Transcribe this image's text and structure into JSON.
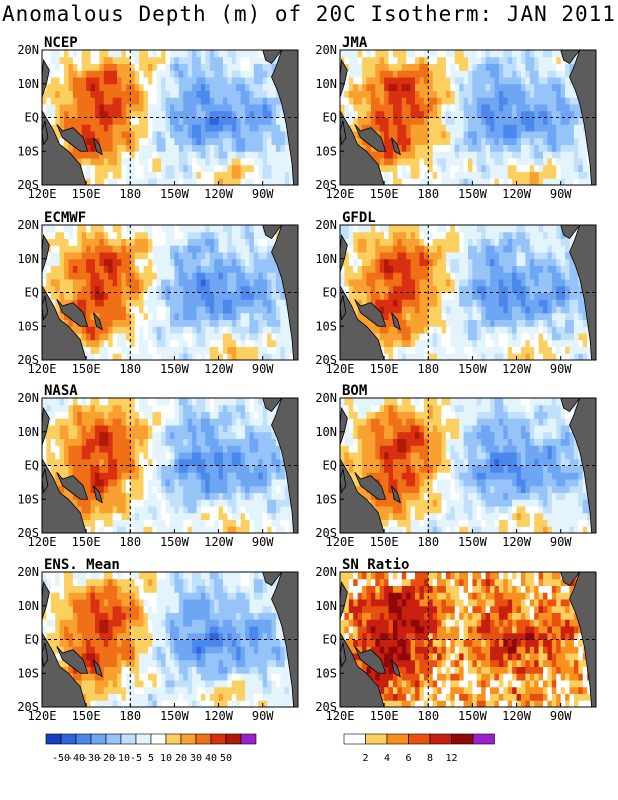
{
  "title": "Anomalous Depth (m) of 20C Isotherm: JAN 2011",
  "axes": {
    "lon_ticks": [
      "120E",
      "150E",
      "180",
      "150W",
      "120W",
      "90W"
    ],
    "lat_ticks": [
      "20N",
      "10N",
      "EQ",
      "10S",
      "20S"
    ],
    "lon_values": [
      120,
      150,
      180,
      210,
      240,
      270
    ],
    "lat_values": [
      20,
      10,
      0,
      -10,
      -20
    ],
    "xlim": [
      120,
      294
    ],
    "ylim": [
      -20,
      20
    ],
    "dashed_reference_lines": {
      "lon": 180,
      "lat": 0
    }
  },
  "colors": {
    "land": "#5c5c5c",
    "anomaly_scale": [
      "#1540c0",
      "#2e64dc",
      "#4a88ec",
      "#6ea6f4",
      "#96c4f8",
      "#c0e0fb",
      "#e4f4fd",
      "#ffffff",
      "#fdf2a8",
      "#fcd060",
      "#f8a030",
      "#f07018",
      "#d83010",
      "#b01808",
      "#800000",
      "#9a20d0"
    ],
    "sn_scale": [
      "#ffffff",
      "#fcd060",
      "#f89020",
      "#e85010",
      "#c82010",
      "#900808",
      "#9a20d0"
    ]
  },
  "chart_data": [
    {
      "type": "heatmap",
      "title": "NCEP",
      "variable": "20C isotherm depth anomaly (m)"
    },
    {
      "type": "heatmap",
      "title": "JMA",
      "variable": "20C isotherm depth anomaly (m)"
    },
    {
      "type": "heatmap",
      "title": "ECMWF",
      "variable": "20C isotherm depth anomaly (m)"
    },
    {
      "type": "heatmap",
      "title": "GFDL",
      "variable": "20C isotherm depth anomaly (m)"
    },
    {
      "type": "heatmap",
      "title": "NASA",
      "variable": "20C isotherm depth anomaly (m)"
    },
    {
      "type": "heatmap",
      "title": "BOM",
      "variable": "20C isotherm depth anomaly (m)"
    },
    {
      "type": "heatmap",
      "title": "ENS. Mean",
      "variable": "20C isotherm depth anomaly (m)"
    },
    {
      "type": "heatmap",
      "title": "SN Ratio",
      "variable": "signal-to-noise ratio"
    }
  ],
  "legends": {
    "anomaly_labels": [
      "-50",
      "-40",
      "-30",
      "-20",
      "-10",
      "-5",
      "5",
      "10",
      "20",
      "30",
      "40",
      "50"
    ],
    "sn_labels": [
      "2",
      "4",
      "6",
      "8",
      "12"
    ]
  }
}
